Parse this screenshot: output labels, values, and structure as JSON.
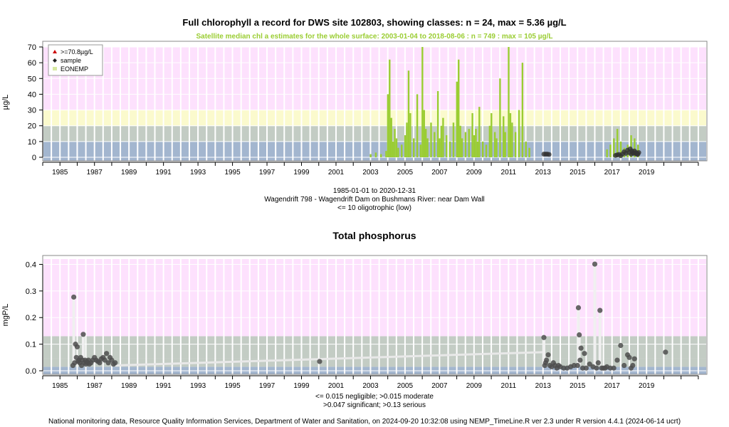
{
  "chart_data": [
    {
      "type": "bar",
      "title": "Full chlorophyll a record for DWS site 102803, showing classes: n = 24, max = 5.36 µg/L",
      "subtitle": "Satellite median chl a estimates for the whole surface: 2003-01-04 to 2018-08-06 : n = 749 : max = 105 µg/L",
      "ylabel": "µg/L",
      "xlabel": "",
      "ylim": [
        0,
        70
      ],
      "yticks": [
        0,
        10,
        20,
        30,
        40,
        50,
        60,
        70
      ],
      "xlim": [
        1984,
        2022.5
      ],
      "xticks": [
        "1985",
        "1987",
        "1989",
        "1991",
        "1993",
        "1995",
        "1997",
        "1999",
        "2001",
        "2003",
        "2005",
        "2007",
        "2009",
        "2011",
        "2013",
        "2015",
        "2017",
        "2019"
      ],
      "bands": [
        {
          "from": 0,
          "to": 10,
          "color": "#a3b6cf"
        },
        {
          "from": 10,
          "to": 20,
          "color": "#c3ccc4"
        },
        {
          "from": 20,
          "to": 30,
          "color": "#fbfacd"
        },
        {
          "from": 30,
          "to": 75,
          "color": "#fde1fd"
        }
      ],
      "legend": {
        "position": "top-left",
        "items": [
          {
            "label": ">=70.8µg/L",
            "symbol": "triangle",
            "color": "#cc0000"
          },
          {
            "label": "sample",
            "symbol": "diamond",
            "color": "#222222"
          },
          {
            "label": "EONEMP",
            "symbol": "square",
            "color": "#d6e8a0"
          }
        ]
      },
      "series": [
        {
          "name": "EONEMP",
          "color": "#9acd32",
          "x": [
            2003.0,
            2003.3,
            2003.6,
            2003.9,
            2004.0,
            2004.1,
            2004.2,
            2004.3,
            2004.4,
            2004.5,
            2004.6,
            2004.8,
            2005.0,
            2005.1,
            2005.2,
            2005.3,
            2005.5,
            2005.7,
            2005.9,
            2006.0,
            2006.1,
            2006.2,
            2006.3,
            2006.5,
            2006.7,
            2006.9,
            2007.0,
            2007.1,
            2007.2,
            2007.4,
            2007.6,
            2007.8,
            2008.0,
            2008.1,
            2008.2,
            2008.3,
            2008.5,
            2008.7,
            2008.9,
            2009.0,
            2009.1,
            2009.2,
            2009.3,
            2009.5,
            2009.7,
            2009.9,
            2010.0,
            2010.2,
            2010.3,
            2010.5,
            2010.7,
            2010.8,
            2011.0,
            2011.1,
            2011.2,
            2011.4,
            2011.6,
            2011.8,
            2012.0,
            2012.2,
            2016.7,
            2016.9,
            2017.1,
            2017.3,
            2017.5,
            2017.7,
            2017.9,
            2018.1,
            2018.3,
            2018.5
          ],
          "y": [
            2,
            3,
            2,
            4,
            40,
            62,
            25,
            10,
            18,
            12,
            6,
            8,
            14,
            22,
            55,
            28,
            12,
            40,
            8,
            70,
            30,
            18,
            12,
            22,
            16,
            42,
            12,
            20,
            25,
            14,
            10,
            22,
            48,
            62,
            20,
            12,
            16,
            18,
            28,
            14,
            18,
            10,
            32,
            10,
            8,
            20,
            28,
            16,
            12,
            50,
            26,
            16,
            70,
            28,
            22,
            16,
            30,
            60,
            10,
            6,
            5,
            8,
            12,
            18,
            10,
            6,
            8,
            14,
            12,
            8
          ]
        },
        {
          "name": "sample",
          "color": "#333333",
          "x": [
            2013.05,
            2013.15,
            2013.25,
            2013.35,
            2017.2,
            2017.3,
            2017.4,
            2017.5,
            2017.6,
            2017.7,
            2017.8,
            2017.9,
            2018.0,
            2018.05,
            2018.1,
            2018.15,
            2018.2,
            2018.25,
            2018.3,
            2018.35,
            2018.4,
            2018.45,
            2018.5,
            2018.55
          ],
          "y": [
            2.0,
            2.0,
            2.0,
            1.8,
            1.2,
            1.5,
            1.8,
            1.0,
            2.0,
            3.5,
            2.5,
            4.5,
            3.0,
            5.36,
            2.0,
            4.0,
            3.0,
            2.5,
            4.0,
            2.5,
            3.0,
            1.8,
            2.0,
            3.0
          ]
        }
      ],
      "caption_lines": [
        "1985-01-01 to 2020-12-31",
        "Wagendrift 798 - Wagendrift Dam on Bushmans River: near Dam Wall",
        "<= 10 oligotrophic (low)"
      ]
    },
    {
      "type": "scatter",
      "title": "Total phosphorus",
      "ylabel": "mgP/L",
      "xlabel": "",
      "ylim": [
        0,
        0.42
      ],
      "yticks": [
        0.0,
        0.1,
        0.2,
        0.3,
        0.4
      ],
      "xlim": [
        1984,
        2022.5
      ],
      "xticks": [
        "1985",
        "1987",
        "1989",
        "1991",
        "1993",
        "1995",
        "1997",
        "1999",
        "2001",
        "2003",
        "2005",
        "2007",
        "2009",
        "2011",
        "2013",
        "2015",
        "2017",
        "2019"
      ],
      "bands": [
        {
          "from": 0,
          "to": 0.015,
          "color": "#a3b6cf"
        },
        {
          "from": 0.015,
          "to": 0.047,
          "color": "#c3ccc4"
        },
        {
          "from": 0.047,
          "to": 0.13,
          "color": "#c3ccc4"
        },
        {
          "from": 0.13,
          "to": 0.45,
          "color": "#fde1fd"
        }
      ],
      "series": [
        {
          "name": "sample",
          "color": "#4d4d4d",
          "x": [
            1985.75,
            1985.8,
            1985.85,
            1985.9,
            1985.95,
            1986.0,
            1986.05,
            1986.1,
            1986.15,
            1986.2,
            1986.25,
            1986.3,
            1986.35,
            1986.4,
            1986.45,
            1986.5,
            1986.55,
            1986.6,
            1986.65,
            1986.7,
            1986.8,
            1986.9,
            1987.0,
            1987.1,
            1987.2,
            1987.3,
            1987.4,
            1987.5,
            1987.6,
            1987.7,
            1987.8,
            1987.9,
            1988.0,
            1988.1,
            1988.2,
            2000.05,
            2013.05,
            2013.1,
            2013.15,
            2013.2,
            2013.3,
            2013.4,
            2013.5,
            2013.6,
            2013.7,
            2013.8,
            2013.9,
            2014.0,
            2014.2,
            2014.4,
            2014.6,
            2014.8,
            2015.0,
            2015.05,
            2015.1,
            2015.15,
            2015.2,
            2015.3,
            2015.4,
            2015.5,
            2015.7,
            2015.9,
            2016.0,
            2016.1,
            2016.2,
            2016.3,
            2016.4,
            2016.5,
            2016.6,
            2016.7,
            2016.9,
            2017.1,
            2017.3,
            2017.5,
            2017.7,
            2017.9,
            2018.0,
            2018.1,
            2018.2,
            2018.3,
            2020.1
          ],
          "y": [
            0.02,
            0.277,
            0.03,
            0.1,
            0.05,
            0.09,
            0.035,
            0.04,
            0.03,
            0.05,
            0.02,
            0.04,
            0.137,
            0.03,
            0.04,
            0.025,
            0.035,
            0.03,
            0.04,
            0.025,
            0.03,
            0.04,
            0.05,
            0.04,
            0.035,
            0.03,
            0.045,
            0.05,
            0.04,
            0.065,
            0.03,
            0.05,
            0.04,
            0.025,
            0.03,
            0.035,
            0.125,
            0.02,
            0.03,
            0.04,
            0.06,
            0.02,
            0.015,
            0.03,
            0.02,
            0.01,
            0.02,
            0.015,
            0.01,
            0.01,
            0.015,
            0.02,
            0.02,
            0.237,
            0.135,
            0.04,
            0.085,
            0.01,
            0.065,
            0.01,
            0.025,
            0.015,
            0.401,
            0.01,
            0.03,
            0.227,
            0.01,
            0.01,
            0.01,
            0.015,
            0.01,
            0.01,
            0.04,
            0.095,
            0.02,
            0.06,
            0.05,
            0.01,
            0.02,
            0.045,
            0.07
          ]
        },
        {
          "name": "trend",
          "color": "#e8e8e8",
          "x": [
            1988.2,
            2013.0
          ],
          "y": [
            0.02,
            0.07
          ]
        }
      ],
      "caption_lines": [
        "<= 0.015 negligible; >0.015 moderate",
        ">0.047 significant; >0.13 serious"
      ]
    }
  ],
  "footer": "National monitoring data, Resource Quality Information Services, Department of Water and Sanitation, on 2024-09-20 10:32:08 using NEMP_TimeLine.R ver 2.3 under R version 4.4.1 (2024-06-14 ucrt)"
}
